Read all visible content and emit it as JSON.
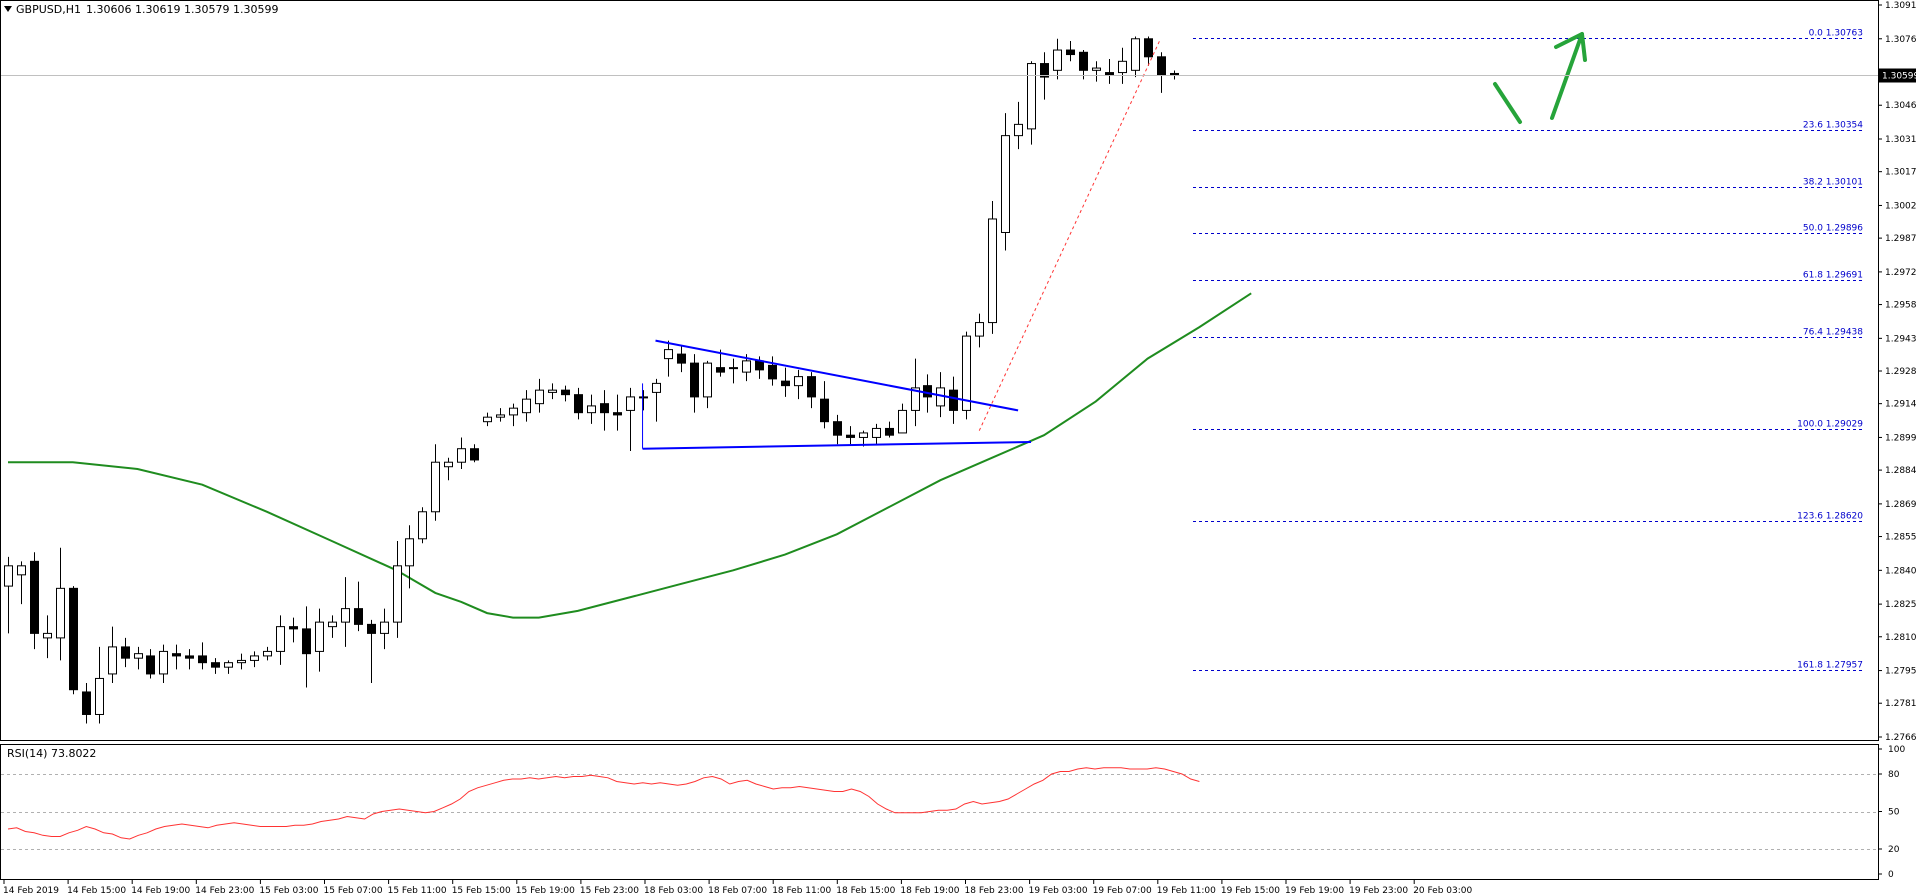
{
  "chart_title": {
    "symbol": "GBPUSD,H1",
    "ohlc": "1.30606 1.30619 1.30579 1.30599"
  },
  "current_price": "1.30599",
  "rsi_label": "RSI(14) 73.8022",
  "colors": {
    "background": "#ffffff",
    "axis": "#000000",
    "candle_border": "#000000",
    "bull_fill": "#ffffff",
    "bear_fill": "#000000",
    "fib_line": "#0000cc",
    "fib_text": "#0000cc",
    "trendline": "#0000ff",
    "moving_average": "#1f8c1f",
    "rsi_line": "#ff3333",
    "dashed_trend": "#ff3333",
    "arrow": "#26a43a",
    "rsi_level": "#b0b0b0"
  },
  "chart_data": [
    {
      "type": "candlestick",
      "x_labels": [
        "14 Feb 2019",
        "14 Feb 15:00",
        "14 Feb 19:00",
        "14 Feb 23:00",
        "15 Feb 03:00",
        "15 Feb 07:00",
        "15 Feb 11:00",
        "15 Feb 15:00",
        "15 Feb 19:00",
        "15 Feb 23:00",
        "18 Feb 03:00",
        "18 Feb 07:00",
        "18 Feb 11:00",
        "18 Feb 15:00",
        "18 Feb 19:00",
        "18 Feb 23:00",
        "19 Feb 03:00",
        "19 Feb 07:00",
        "19 Feb 11:00",
        "19 Feb 15:00",
        "19 Feb 19:00",
        "19 Feb 23:00",
        "20 Feb 03:00"
      ],
      "y_ticks": [
        "1.30910",
        "1.30760",
        "1.30465",
        "1.30315",
        "1.30170",
        "1.30020",
        "1.29875",
        "1.29725",
        "1.29580",
        "1.29430",
        "1.29285",
        "1.29140",
        "1.28990",
        "1.28845",
        "1.28695",
        "1.28550",
        "1.28400",
        "1.28250",
        "1.28105",
        "1.27955",
        "1.27810",
        "1.27660"
      ],
      "ylim": [
        1.2766,
        1.3091
      ],
      "candles": [
        {
          "o": 1.2833,
          "h": 1.2846,
          "l": 1.2812,
          "c": 1.2842
        },
        {
          "o": 1.2838,
          "h": 1.2844,
          "l": 1.2825,
          "c": 1.2842
        },
        {
          "o": 1.2844,
          "h": 1.2848,
          "l": 1.2805,
          "c": 1.2812
        },
        {
          "o": 1.281,
          "h": 1.282,
          "l": 1.2801,
          "c": 1.2812
        },
        {
          "o": 1.281,
          "h": 1.285,
          "l": 1.28,
          "c": 1.2832
        },
        {
          "o": 1.2832,
          "h": 1.2833,
          "l": 1.2785,
          "c": 1.2787
        },
        {
          "o": 1.2786,
          "h": 1.279,
          "l": 1.2772,
          "c": 1.2776
        },
        {
          "o": 1.2776,
          "h": 1.2806,
          "l": 1.2772,
          "c": 1.2792
        },
        {
          "o": 1.2794,
          "h": 1.2815,
          "l": 1.279,
          "c": 1.2806
        },
        {
          "o": 1.2806,
          "h": 1.281,
          "l": 1.2797,
          "c": 1.2801
        },
        {
          "o": 1.2801,
          "h": 1.2806,
          "l": 1.2796,
          "c": 1.2803
        },
        {
          "o": 1.2802,
          "h": 1.2805,
          "l": 1.2792,
          "c": 1.2794
        },
        {
          "o": 1.2794,
          "h": 1.2807,
          "l": 1.279,
          "c": 1.2804
        },
        {
          "o": 1.2803,
          "h": 1.2807,
          "l": 1.2796,
          "c": 1.2802
        },
        {
          "o": 1.2802,
          "h": 1.2805,
          "l": 1.2796,
          "c": 1.2801
        },
        {
          "o": 1.2802,
          "h": 1.2808,
          "l": 1.2796,
          "c": 1.2799
        },
        {
          "o": 1.2799,
          "h": 1.2801,
          "l": 1.2794,
          "c": 1.2797
        },
        {
          "o": 1.2797,
          "h": 1.28,
          "l": 1.2794,
          "c": 1.2799
        },
        {
          "o": 1.2799,
          "h": 1.2803,
          "l": 1.2796,
          "c": 1.28
        },
        {
          "o": 1.28,
          "h": 1.2804,
          "l": 1.2797,
          "c": 1.2802
        },
        {
          "o": 1.2802,
          "h": 1.2806,
          "l": 1.28,
          "c": 1.2804
        },
        {
          "o": 1.2804,
          "h": 1.282,
          "l": 1.2798,
          "c": 1.2815
        },
        {
          "o": 1.2815,
          "h": 1.2819,
          "l": 1.2808,
          "c": 1.2814
        },
        {
          "o": 1.2814,
          "h": 1.2824,
          "l": 1.2788,
          "c": 1.2803
        },
        {
          "o": 1.2804,
          "h": 1.2823,
          "l": 1.2795,
          "c": 1.2817
        },
        {
          "o": 1.2815,
          "h": 1.282,
          "l": 1.281,
          "c": 1.2817
        },
        {
          "o": 1.2817,
          "h": 1.2837,
          "l": 1.2806,
          "c": 1.2823
        },
        {
          "o": 1.2823,
          "h": 1.2835,
          "l": 1.2813,
          "c": 1.2816
        },
        {
          "o": 1.2816,
          "h": 1.2818,
          "l": 1.279,
          "c": 1.2812
        },
        {
          "o": 1.2812,
          "h": 1.2823,
          "l": 1.2805,
          "c": 1.2817
        },
        {
          "o": 1.2817,
          "h": 1.2853,
          "l": 1.281,
          "c": 1.2842
        },
        {
          "o": 1.2842,
          "h": 1.286,
          "l": 1.2832,
          "c": 1.2854
        },
        {
          "o": 1.2854,
          "h": 1.2868,
          "l": 1.2852,
          "c": 1.2866
        },
        {
          "o": 1.2866,
          "h": 1.2896,
          "l": 1.2862,
          "c": 1.2888
        },
        {
          "o": 1.2886,
          "h": 1.289,
          "l": 1.288,
          "c": 1.2888
        },
        {
          "o": 1.2888,
          "h": 1.2899,
          "l": 1.2885,
          "c": 1.2894
        },
        {
          "o": 1.2894,
          "h": 1.2896,
          "l": 1.2888,
          "c": 1.2889
        },
        {
          "o": 1.2906,
          "h": 1.291,
          "l": 1.2904,
          "c": 1.2908
        },
        {
          "o": 1.2908,
          "h": 1.2912,
          "l": 1.2906,
          "c": 1.2909
        },
        {
          "o": 1.2909,
          "h": 1.2914,
          "l": 1.2904,
          "c": 1.2912
        },
        {
          "o": 1.291,
          "h": 1.292,
          "l": 1.2906,
          "c": 1.2916
        },
        {
          "o": 1.2914,
          "h": 1.2925,
          "l": 1.291,
          "c": 1.292
        },
        {
          "o": 1.2919,
          "h": 1.2923,
          "l": 1.2916,
          "c": 1.292
        },
        {
          "o": 1.292,
          "h": 1.2922,
          "l": 1.2915,
          "c": 1.2918
        },
        {
          "o": 1.2918,
          "h": 1.2921,
          "l": 1.2907,
          "c": 1.291
        },
        {
          "o": 1.291,
          "h": 1.2918,
          "l": 1.2905,
          "c": 1.2913
        },
        {
          "o": 1.2914,
          "h": 1.292,
          "l": 1.2902,
          "c": 1.291
        },
        {
          "o": 1.291,
          "h": 1.2918,
          "l": 1.2902,
          "c": 1.2909
        },
        {
          "o": 1.2911,
          "h": 1.2921,
          "l": 1.2893,
          "c": 1.2917
        },
        {
          "o": 1.2917,
          "h": 1.292,
          "l": 1.2911,
          "c": 1.2917
        },
        {
          "o": 1.2919,
          "h": 1.2925,
          "l": 1.2906,
          "c": 1.2923
        },
        {
          "o": 1.2934,
          "h": 1.2942,
          "l": 1.2926,
          "c": 1.2938
        },
        {
          "o": 1.2936,
          "h": 1.294,
          "l": 1.2928,
          "c": 1.2932
        },
        {
          "o": 1.2932,
          "h": 1.2936,
          "l": 1.291,
          "c": 1.2917
        },
        {
          "o": 1.2917,
          "h": 1.2933,
          "l": 1.2912,
          "c": 1.2932
        },
        {
          "o": 1.293,
          "h": 1.2938,
          "l": 1.2926,
          "c": 1.2928
        },
        {
          "o": 1.293,
          "h": 1.2934,
          "l": 1.2923,
          "c": 1.293
        },
        {
          "o": 1.2928,
          "h": 1.2936,
          "l": 1.2924,
          "c": 1.2933
        },
        {
          "o": 1.2933,
          "h": 1.2935,
          "l": 1.2925,
          "c": 1.2929
        },
        {
          "o": 1.2931,
          "h": 1.2935,
          "l": 1.2922,
          "c": 1.2925
        },
        {
          "o": 1.2924,
          "h": 1.293,
          "l": 1.2917,
          "c": 1.2922
        },
        {
          "o": 1.2922,
          "h": 1.2929,
          "l": 1.2916,
          "c": 1.2926
        },
        {
          "o": 1.2926,
          "h": 1.2928,
          "l": 1.2912,
          "c": 1.2917
        },
        {
          "o": 1.2916,
          "h": 1.2924,
          "l": 1.2903,
          "c": 1.2906
        },
        {
          "o": 1.2906,
          "h": 1.2909,
          "l": 1.2896,
          "c": 1.29
        },
        {
          "o": 1.29,
          "h": 1.2904,
          "l": 1.2896,
          "c": 1.2899
        },
        {
          "o": 1.2899,
          "h": 1.2902,
          "l": 1.2895,
          "c": 1.2901
        },
        {
          "o": 1.2899,
          "h": 1.2905,
          "l": 1.2896,
          "c": 1.2903
        },
        {
          "o": 1.2903,
          "h": 1.2906,
          "l": 1.2899,
          "c": 1.29
        },
        {
          "o": 1.2901,
          "h": 1.2914,
          "l": 1.2901,
          "c": 1.2911
        },
        {
          "o": 1.2911,
          "h": 1.2934,
          "l": 1.2904,
          "c": 1.2921
        },
        {
          "o": 1.2922,
          "h": 1.2927,
          "l": 1.291,
          "c": 1.2917
        },
        {
          "o": 1.2913,
          "h": 1.2928,
          "l": 1.2908,
          "c": 1.2921
        },
        {
          "o": 1.292,
          "h": 1.2926,
          "l": 1.2905,
          "c": 1.2911
        },
        {
          "o": 1.2911,
          "h": 1.2946,
          "l": 1.2907,
          "c": 1.2944
        },
        {
          "o": 1.2944,
          "h": 1.2954,
          "l": 1.2939,
          "c": 1.295
        },
        {
          "o": 1.295,
          "h": 1.3004,
          "l": 1.2945,
          "c": 1.2996
        },
        {
          "o": 1.299,
          "h": 1.3043,
          "l": 1.2982,
          "c": 1.3033
        },
        {
          "o": 1.3033,
          "h": 1.3048,
          "l": 1.3027,
          "c": 1.3038
        },
        {
          "o": 1.3036,
          "h": 1.3066,
          "l": 1.3029,
          "c": 1.3065
        },
        {
          "o": 1.3065,
          "h": 1.307,
          "l": 1.3049,
          "c": 1.3059
        },
        {
          "o": 1.3062,
          "h": 1.3076,
          "l": 1.3058,
          "c": 1.3071
        },
        {
          "o": 1.3071,
          "h": 1.3075,
          "l": 1.3066,
          "c": 1.3069
        },
        {
          "o": 1.307,
          "h": 1.3071,
          "l": 1.3058,
          "c": 1.3062
        },
        {
          "o": 1.3062,
          "h": 1.3066,
          "l": 1.3057,
          "c": 1.3063
        },
        {
          "o": 1.3061,
          "h": 1.3067,
          "l": 1.3056,
          "c": 1.306
        },
        {
          "o": 1.3061,
          "h": 1.3072,
          "l": 1.3056,
          "c": 1.3066
        },
        {
          "o": 1.3062,
          "h": 1.3077,
          "l": 1.3059,
          "c": 1.3076
        },
        {
          "o": 1.3076,
          "h": 1.3077,
          "l": 1.3064,
          "c": 1.3068
        },
        {
          "o": 1.3068,
          "h": 1.307,
          "l": 1.3052,
          "c": 1.306
        },
        {
          "o": 1.30606,
          "h": 1.30619,
          "l": 1.30579,
          "c": 1.30599
        }
      ],
      "moving_average": [
        {
          "i": 0,
          "v": 1.2888
        },
        {
          "i": 5,
          "v": 1.2888
        },
        {
          "i": 10,
          "v": 1.2885
        },
        {
          "i": 15,
          "v": 1.2878
        },
        {
          "i": 20,
          "v": 1.2866
        },
        {
          "i": 25,
          "v": 1.2853
        },
        {
          "i": 30,
          "v": 1.284
        },
        {
          "i": 33,
          "v": 1.283
        },
        {
          "i": 35,
          "v": 1.2826
        },
        {
          "i": 37,
          "v": 1.2821
        },
        {
          "i": 39,
          "v": 1.2819
        },
        {
          "i": 41,
          "v": 1.2819
        },
        {
          "i": 44,
          "v": 1.2822
        },
        {
          "i": 48,
          "v": 1.2828
        },
        {
          "i": 52,
          "v": 1.2834
        },
        {
          "i": 56,
          "v": 1.284
        },
        {
          "i": 60,
          "v": 1.2847
        },
        {
          "i": 64,
          "v": 1.2856
        },
        {
          "i": 68,
          "v": 1.2868
        },
        {
          "i": 72,
          "v": 1.288
        },
        {
          "i": 76,
          "v": 1.289
        },
        {
          "i": 80,
          "v": 1.29
        },
        {
          "i": 84,
          "v": 1.2915
        },
        {
          "i": 88,
          "v": 1.2934
        },
        {
          "i": 92,
          "v": 1.2948
        },
        {
          "i": 96,
          "v": 1.2963
        }
      ],
      "fibonacci": [
        {
          "level": "0.0",
          "price": "1.30763"
        },
        {
          "level": "23.6",
          "price": "1.30354"
        },
        {
          "level": "38.2",
          "price": "1.30101"
        },
        {
          "level": "50.0",
          "price": "1.29896"
        },
        {
          "level": "61.8",
          "price": "1.29691"
        },
        {
          "level": "76.4",
          "price": "1.29438"
        },
        {
          "level": "100.0",
          "price": "1.29029"
        },
        {
          "level": "123.6",
          "price": "1.28620"
        },
        {
          "level": "161.8",
          "price": "1.27957"
        }
      ],
      "triangle_upper": [
        {
          "i": 50,
          "v": 1.2942
        },
        {
          "i": 78,
          "v": 1.2911
        }
      ],
      "triangle_lower": [
        {
          "i": 49,
          "v": 1.2894
        },
        {
          "i": 79,
          "v": 1.2897
        }
      ],
      "dashed_trend": [
        {
          "i": 75,
          "v": 1.2902
        },
        {
          "i": 89,
          "v": 1.3076
        }
      ]
    },
    {
      "type": "line",
      "name": "RSI(14) 73.8022",
      "y_ticks": [
        "100",
        "80",
        "50",
        "20",
        "0"
      ],
      "levels": [
        80,
        50,
        20
      ],
      "ylim": [
        0,
        100
      ],
      "values": [
        36,
        37,
        34,
        33,
        31,
        30,
        30,
        33,
        35,
        38,
        36,
        33,
        32,
        29,
        28,
        31,
        33,
        36,
        38,
        39,
        40,
        39,
        38,
        37,
        39,
        40,
        41,
        40,
        39,
        38,
        38,
        38,
        38,
        39,
        39,
        40,
        42,
        43,
        44,
        46,
        45,
        44,
        48,
        50,
        51,
        52,
        51,
        50,
        49,
        50,
        53,
        56,
        60,
        66,
        69,
        71,
        73,
        75,
        76,
        76,
        77,
        76,
        77,
        78,
        77,
        78,
        78,
        79,
        78,
        77,
        74,
        73,
        72,
        73,
        72,
        73,
        72,
        71,
        72,
        74,
        77,
        78,
        76,
        72,
        74,
        75,
        72,
        70,
        68,
        69,
        69,
        70,
        69,
        68,
        67,
        66,
        66,
        68,
        66,
        62,
        56,
        52,
        49,
        49,
        49,
        49,
        50,
        51,
        51,
        52,
        56,
        58,
        56,
        57,
        58,
        60,
        64,
        68,
        72,
        75,
        80,
        82,
        82,
        84,
        85,
        84,
        85,
        85,
        85,
        84,
        84,
        84,
        85,
        84,
        82,
        80,
        76,
        74
      ],
      "x_labels_shared_with_price": true
    }
  ]
}
